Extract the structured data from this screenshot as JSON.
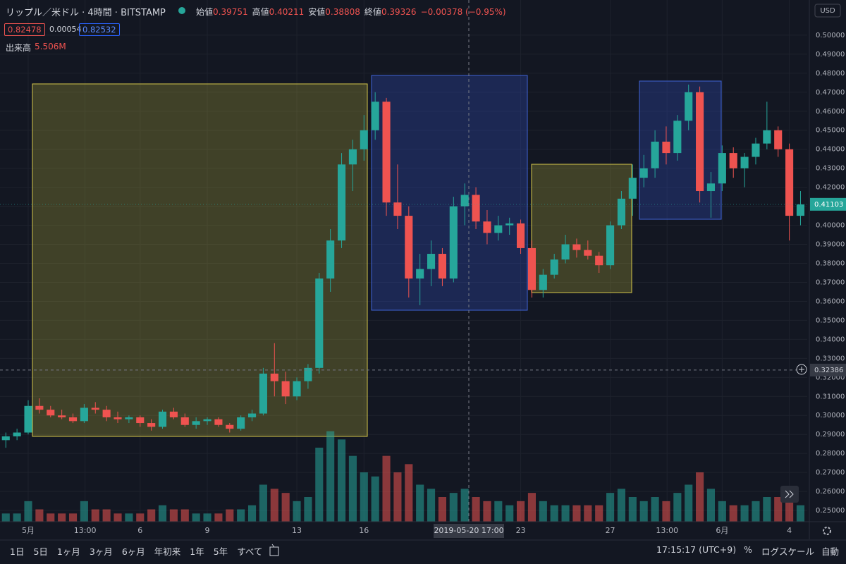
{
  "header": {
    "symbol": "リップル／米ドル · 4時間 · BITSTAMP",
    "ohlc": [
      {
        "label": "始値",
        "value": "0.39751"
      },
      {
        "label": "高値",
        "value": "0.40211"
      },
      {
        "label": "安値",
        "value": "0.38808"
      },
      {
        "label": "終値",
        "value": "0.39326"
      }
    ],
    "change": "−0.00378 (−0.95%)",
    "bid": "0.82478",
    "spread": "0.00054",
    "ask": "0.82532",
    "volume_label": "出来高",
    "volume_value": "5.506M"
  },
  "currency": "USD",
  "crosshair_time": "2019-05-20   17:00",
  "toolbar": {
    "ranges": [
      "1日",
      "5日",
      "1ヶ月",
      "3ヶ月",
      "6ヶ月",
      "年初来",
      "1年",
      "5年",
      "すべて"
    ],
    "clock": "17:15:17 (UTC+9)",
    "percent": "%",
    "log": "ログスケール",
    "auto": "自動"
  },
  "chart_data": {
    "type": "candlestick",
    "up_color": "#26a69a",
    "down_color": "#ef5350",
    "x": [
      -1.0,
      -0.5,
      0.0,
      0.5,
      1.0,
      1.5,
      2.0,
      2.5,
      3.0,
      3.5,
      4.0,
      4.5,
      5.0,
      5.5,
      6.0,
      6.5,
      7.0,
      7.5,
      8.0,
      8.5,
      9.0,
      9.5,
      10.0,
      10.5,
      11.0,
      11.5,
      12.0,
      12.5,
      13.0,
      13.5,
      14.0,
      14.5,
      15.0,
      15.5,
      16.0,
      16.5,
      17.0,
      17.5,
      18.0,
      18.5,
      19.0,
      19.5,
      20.0,
      20.5,
      21.0,
      21.5,
      22.0,
      22.5,
      23.0,
      23.5,
      24.0,
      24.5,
      25.0,
      25.5,
      26.0,
      26.5,
      27.0,
      27.5,
      28.0,
      28.5,
      29.0,
      29.5,
      30.0,
      30.5,
      31.0,
      31.5,
      32.0,
      32.5,
      33.0,
      33.5,
      34.0,
      34.5
    ],
    "open": [
      0.287,
      0.289,
      0.291,
      0.305,
      0.303,
      0.3,
      0.299,
      0.297,
      0.304,
      0.303,
      0.299,
      0.298,
      0.299,
      0.296,
      0.294,
      0.302,
      0.299,
      0.295,
      0.297,
      0.298,
      0.295,
      0.293,
      0.299,
      0.301,
      0.322,
      0.318,
      0.31,
      0.318,
      0.325,
      0.372,
      0.392,
      0.432,
      0.44,
      0.45,
      0.465,
      0.412,
      0.405,
      0.372,
      0.377,
      0.385,
      0.372,
      0.41,
      0.416,
      0.402,
      0.396,
      0.4,
      0.401,
      0.388,
      0.366,
      0.374,
      0.382,
      0.39,
      0.387,
      0.384,
      0.379,
      0.4,
      0.414,
      0.425,
      0.43,
      0.444,
      0.438,
      0.455,
      0.47,
      0.418,
      0.422,
      0.438,
      0.43,
      0.436,
      0.443,
      0.45,
      0.44,
      0.405
    ],
    "high": [
      0.291,
      0.293,
      0.308,
      0.309,
      0.305,
      0.303,
      0.301,
      0.306,
      0.307,
      0.305,
      0.302,
      0.3,
      0.3,
      0.298,
      0.303,
      0.304,
      0.301,
      0.299,
      0.299,
      0.299,
      0.296,
      0.3,
      0.303,
      0.325,
      0.338,
      0.323,
      0.32,
      0.327,
      0.375,
      0.398,
      0.438,
      0.445,
      0.458,
      0.47,
      0.467,
      0.432,
      0.41,
      0.385,
      0.392,
      0.388,
      0.415,
      0.422,
      0.42,
      0.408,
      0.405,
      0.404,
      0.403,
      0.392,
      0.377,
      0.385,
      0.395,
      0.393,
      0.392,
      0.386,
      0.402,
      0.418,
      0.432,
      0.437,
      0.45,
      0.452,
      0.458,
      0.474,
      0.473,
      0.428,
      0.442,
      0.441,
      0.438,
      0.446,
      0.465,
      0.452,
      0.443,
      0.418
    ],
    "low": [
      0.283,
      0.287,
      0.29,
      0.301,
      0.299,
      0.298,
      0.296,
      0.296,
      0.301,
      0.297,
      0.296,
      0.296,
      0.294,
      0.292,
      0.293,
      0.298,
      0.294,
      0.293,
      0.295,
      0.294,
      0.291,
      0.292,
      0.297,
      0.3,
      0.31,
      0.306,
      0.308,
      0.314,
      0.322,
      0.365,
      0.388,
      0.418,
      0.434,
      0.445,
      0.405,
      0.398,
      0.362,
      0.358,
      0.368,
      0.368,
      0.37,
      0.4,
      0.398,
      0.39,
      0.392,
      0.395,
      0.385,
      0.362,
      0.362,
      0.372,
      0.38,
      0.383,
      0.382,
      0.375,
      0.377,
      0.398,
      0.405,
      0.42,
      0.425,
      0.432,
      0.434,
      0.45,
      0.412,
      0.404,
      0.418,
      0.425,
      0.42,
      0.432,
      0.44,
      0.436,
      0.392,
      0.4
    ],
    "close": [
      0.289,
      0.291,
      0.305,
      0.303,
      0.3,
      0.299,
      0.297,
      0.304,
      0.303,
      0.299,
      0.298,
      0.299,
      0.296,
      0.294,
      0.302,
      0.299,
      0.295,
      0.297,
      0.298,
      0.295,
      0.293,
      0.299,
      0.301,
      0.322,
      0.318,
      0.31,
      0.318,
      0.325,
      0.372,
      0.392,
      0.432,
      0.44,
      0.45,
      0.465,
      0.412,
      0.405,
      0.372,
      0.377,
      0.385,
      0.372,
      0.41,
      0.416,
      0.402,
      0.396,
      0.4,
      0.401,
      0.388,
      0.366,
      0.374,
      0.382,
      0.39,
      0.387,
      0.384,
      0.379,
      0.4,
      0.414,
      0.425,
      0.43,
      0.444,
      0.438,
      0.455,
      0.47,
      0.418,
      0.422,
      0.438,
      0.43,
      0.436,
      0.443,
      0.45,
      0.44,
      0.405,
      0.411
    ],
    "volume": [
      2,
      2,
      5,
      3,
      2,
      2,
      2,
      5,
      3,
      3,
      2,
      2,
      2,
      3,
      4,
      3,
      3,
      2,
      2,
      2,
      3,
      3,
      4,
      9,
      8,
      7,
      5,
      6,
      18,
      22,
      20,
      16,
      12,
      11,
      16,
      12,
      14,
      9,
      8,
      6,
      7,
      8,
      6,
      5,
      5,
      4,
      5,
      7,
      5,
      4,
      4,
      4,
      4,
      4,
      7,
      8,
      6,
      5,
      6,
      5,
      7,
      9,
      12,
      8,
      5,
      4,
      4,
      5,
      6,
      6,
      7,
      4
    ],
    "xlim": [
      -1.26,
      34.8
    ],
    "ylim": [
      0.2441,
      0.5185
    ],
    "volume_ylim": [
      0,
      24
    ],
    "last_price": 0.41103,
    "crosshair_price": 0.32386,
    "xticks": [
      {
        "value": 0,
        "label": "5月"
      },
      {
        "value": 2.54,
        "label": "13:00"
      },
      {
        "value": 5,
        "label": "6"
      },
      {
        "value": 8,
        "label": "9"
      },
      {
        "value": 12,
        "label": "13"
      },
      {
        "value": 15,
        "label": "16"
      },
      {
        "value": 22,
        "label": "23"
      },
      {
        "value": 26,
        "label": "27"
      },
      {
        "value": 28.54,
        "label": "13:00"
      },
      {
        "value": 31,
        "label": "6月"
      },
      {
        "value": 34,
        "label": "4"
      }
    ],
    "yticks": [
      {
        "value": 0.25,
        "label": "0.25000"
      },
      {
        "value": 0.26,
        "label": "0.26000"
      },
      {
        "value": 0.27,
        "label": "0.27000"
      },
      {
        "value": 0.28,
        "label": "0.28000"
      },
      {
        "value": 0.29,
        "label": "0.29000"
      },
      {
        "value": 0.3,
        "label": "0.30000"
      },
      {
        "value": 0.31,
        "label": "0.31000"
      },
      {
        "value": 0.32,
        "label": "0.32000"
      },
      {
        "value": 0.33,
        "label": "0.33000"
      },
      {
        "value": 0.34,
        "label": "0.34000"
      },
      {
        "value": 0.35,
        "label": "0.35000"
      },
      {
        "value": 0.36,
        "label": "0.36000"
      },
      {
        "value": 0.37,
        "label": "0.37000"
      },
      {
        "value": 0.38,
        "label": "0.38000"
      },
      {
        "value": 0.39,
        "label": "0.39000"
      },
      {
        "value": 0.4,
        "label": "0.40000"
      },
      {
        "value": 0.41,
        "label": "0.41000"
      },
      {
        "value": 0.42,
        "label": "0.42000"
      },
      {
        "value": 0.43,
        "label": "0.43000"
      },
      {
        "value": 0.44,
        "label": "0.44000"
      },
      {
        "value": 0.45,
        "label": "0.45000"
      },
      {
        "value": 0.46,
        "label": "0.46000"
      },
      {
        "value": 0.47,
        "label": "0.47000"
      },
      {
        "value": 0.48,
        "label": "0.48000"
      },
      {
        "value": 0.49,
        "label": "0.49000"
      },
      {
        "value": 0.5,
        "label": "0.50000"
      }
    ],
    "grid": true
  }
}
